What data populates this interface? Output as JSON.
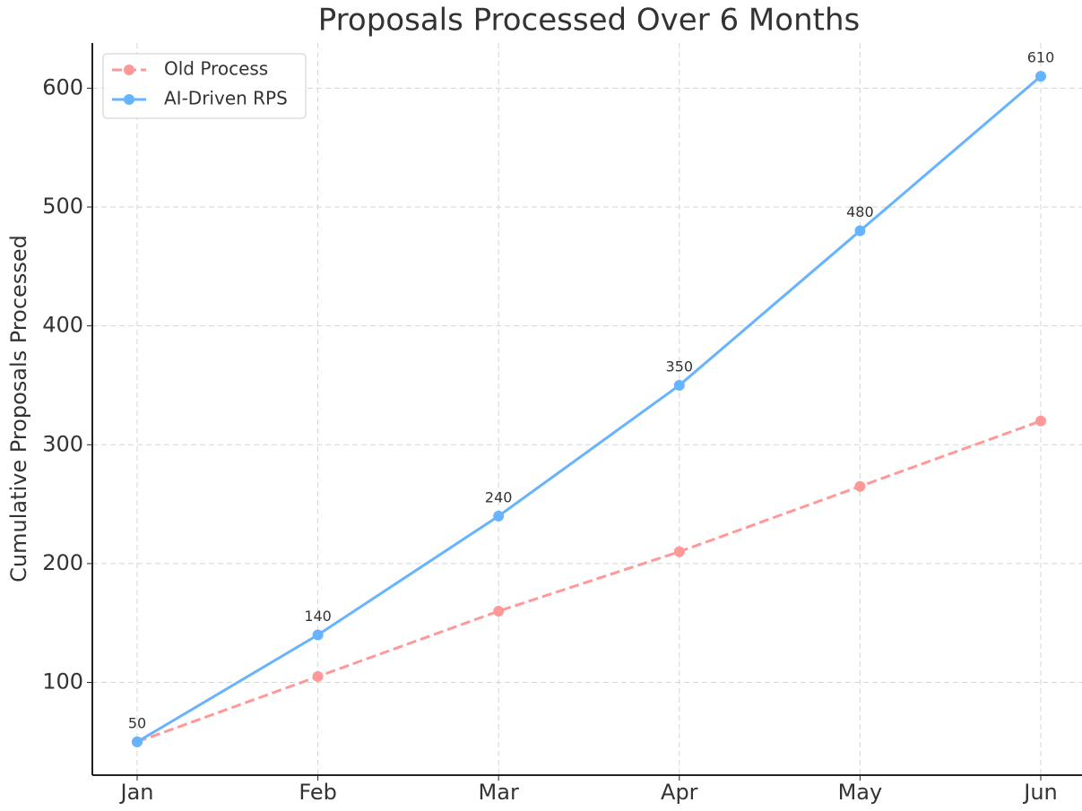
{
  "chart_data": {
    "type": "line",
    "title": "Proposals Processed Over 6 Months",
    "ylabel": "Cumulative Proposals Processed",
    "categories": [
      "Jan",
      "Feb",
      "Mar",
      "Apr",
      "May",
      "Jun"
    ],
    "series": [
      {
        "name": "Old Process",
        "color": "#ff9999",
        "dashed": true,
        "data_labels": false,
        "values": [
          50,
          105,
          160,
          210,
          265,
          320
        ]
      },
      {
        "name": "AI-Driven RPS",
        "color": "#66b3ff",
        "dashed": false,
        "data_labels": true,
        "values": [
          50,
          140,
          240,
          350,
          480,
          610
        ]
      }
    ],
    "ylim": [
      22,
      638
    ],
    "yticks": [
      100,
      200,
      300,
      400,
      500,
      600
    ],
    "grid": true,
    "legend": "upper left"
  }
}
